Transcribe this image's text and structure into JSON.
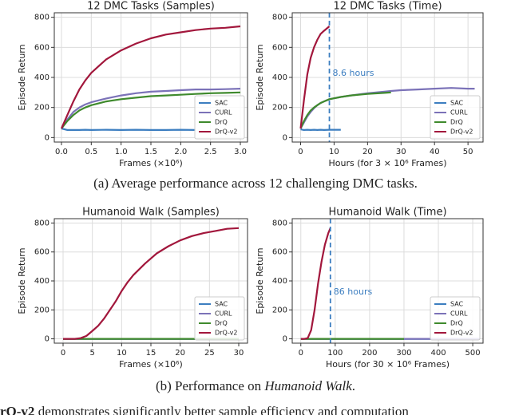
{
  "chart_data": [
    {
      "type": "line",
      "title": "12 DMC Tasks (Samples)",
      "x_label": "Frames (×10⁶)",
      "y_label": "Episode Return",
      "x": [
        0,
        0.1,
        0.2,
        0.3,
        0.4,
        0.5,
        0.75,
        1.0,
        1.25,
        1.5,
        1.75,
        2.0,
        2.25,
        2.5,
        2.75,
        3.0
      ],
      "series": [
        {
          "name": "SAC",
          "color": "#3c7ec0",
          "values": [
            60,
            50,
            50,
            50,
            52,
            50,
            52,
            50,
            52,
            50,
            50,
            52,
            50,
            null,
            null,
            null
          ]
        },
        {
          "name": "CURL",
          "color": "#7b72b8",
          "values": [
            60,
            120,
            170,
            200,
            220,
            235,
            260,
            280,
            295,
            305,
            310,
            315,
            320,
            320,
            322,
            325
          ]
        },
        {
          "name": "DrQ",
          "color": "#3f8a2d",
          "values": [
            60,
            110,
            150,
            180,
            200,
            215,
            240,
            255,
            265,
            275,
            280,
            285,
            290,
            295,
            297,
            300
          ]
        },
        {
          "name": "DrQ-v2",
          "color": "#a2173c",
          "values": [
            60,
            150,
            240,
            320,
            380,
            430,
            520,
            580,
            625,
            660,
            685,
            700,
            715,
            725,
            730,
            740
          ]
        }
      ],
      "xlim": [
        -0.12,
        3.12
      ],
      "ylim": [
        -30,
        830
      ],
      "xticks": [
        {
          "value": 0,
          "label": "0.0"
        },
        0.5,
        {
          "value": 1,
          "label": "1.0"
        },
        1.5,
        {
          "value": 2,
          "label": "2.0"
        },
        2.5,
        {
          "value": 3,
          "label": "3.0"
        }
      ],
      "yticks": [
        0,
        200,
        400,
        600,
        800
      ],
      "grid": true,
      "legend": "lower right"
    },
    {
      "type": "line",
      "title": "12 DMC Tasks (Time)",
      "x_label": "Hours (for 3 × 10⁶ Frames)",
      "y_label": "Episode Return",
      "x": [
        0,
        1,
        2,
        3,
        4,
        5,
        6,
        7,
        8.6,
        12,
        15,
        20,
        25,
        27,
        30,
        35,
        40,
        45,
        50,
        52
      ],
      "series": [
        {
          "name": "SAC",
          "color": "#3c7ec0",
          "values": [
            55,
            50,
            52,
            50,
            52,
            50,
            52,
            50,
            52,
            52,
            null,
            null,
            null,
            null,
            null,
            null,
            null,
            null,
            null,
            null
          ]
        },
        {
          "name": "CURL",
          "color": "#7b72b8",
          "values": [
            60,
            100,
            140,
            170,
            195,
            215,
            230,
            240,
            255,
            270,
            280,
            295,
            305,
            310,
            315,
            320,
            325,
            330,
            325,
            325
          ]
        },
        {
          "name": "DrQ",
          "color": "#3f8a2d",
          "values": [
            60,
            110,
            150,
            180,
            200,
            215,
            230,
            240,
            255,
            270,
            280,
            290,
            297,
            300,
            null,
            null,
            null,
            null,
            null,
            null
          ]
        },
        {
          "name": "DrQ-v2",
          "color": "#a2173c",
          "values": [
            60,
            250,
            420,
            530,
            600,
            650,
            690,
            710,
            740,
            null,
            null,
            null,
            null,
            null,
            null,
            null,
            null,
            null,
            null,
            null
          ]
        }
      ],
      "xlim": [
        -2.5,
        54.5
      ],
      "ylim": [
        -30,
        830
      ],
      "xticks": [
        0,
        10,
        20,
        30,
        40,
        50
      ],
      "yticks": [
        0,
        200,
        400,
        600,
        800
      ],
      "grid": true,
      "legend": "lower right",
      "vline": {
        "value": 8.6,
        "label": "8.6 hours",
        "color": "#3c7ec0"
      }
    },
    {
      "type": "line",
      "title": "Humanoid Walk (Samples)",
      "x_label": "Frames (×10⁶)",
      "y_label": "Episode Return",
      "x": [
        0,
        2,
        3,
        4,
        5,
        6,
        7,
        8,
        9,
        10,
        11,
        12,
        14,
        16,
        18,
        20,
        22,
        24,
        26,
        28,
        30
      ],
      "series": [
        {
          "name": "SAC",
          "color": "#3c7ec0",
          "values": [
            0,
            0,
            0,
            0,
            0,
            0,
            0,
            0,
            0,
            0,
            0,
            0,
            0,
            0,
            0,
            0,
            0,
            0,
            0,
            0,
            0
          ]
        },
        {
          "name": "CURL",
          "color": "#7b72b8",
          "values": [
            0,
            0,
            0,
            0,
            0,
            0,
            0,
            0,
            0,
            0,
            0,
            0,
            0,
            0,
            0,
            0,
            0,
            0,
            0,
            0,
            0
          ]
        },
        {
          "name": "DrQ",
          "color": "#3f8a2d",
          "values": [
            0,
            0,
            0,
            0,
            0,
            0,
            0,
            0,
            0,
            0,
            0,
            0,
            0,
            0,
            0,
            0,
            0,
            0,
            0,
            0,
            0
          ]
        },
        {
          "name": "DrQ-v2",
          "color": "#a2173c",
          "values": [
            0,
            0,
            5,
            20,
            55,
            90,
            140,
            200,
            260,
            330,
            390,
            440,
            520,
            590,
            640,
            680,
            710,
            730,
            745,
            760,
            765
          ]
        }
      ],
      "xlim": [
        -1.5,
        31.5
      ],
      "ylim": [
        -30,
        830
      ],
      "xticks": [
        0,
        5,
        10,
        15,
        20,
        25,
        30
      ],
      "yticks": [
        0,
        200,
        400,
        600,
        800
      ],
      "grid": true,
      "legend": "lower right"
    },
    {
      "type": "line",
      "title": "Humanoid Walk (Time)",
      "x_label": "Hours (for 30 × 10⁶ Frames)",
      "y_label": "Episode Return",
      "x": [
        0,
        10,
        20,
        30,
        40,
        50,
        60,
        70,
        80,
        86,
        100,
        200,
        300,
        400,
        500,
        520
      ],
      "series": [
        {
          "name": "SAC",
          "color": "#3c7ec0",
          "values": [
            0,
            0,
            0,
            0,
            0,
            0,
            0,
            0,
            0,
            0,
            0,
            0,
            0,
            0,
            0,
            0
          ]
        },
        {
          "name": "CURL",
          "color": "#7b72b8",
          "values": [
            0,
            0,
            0,
            0,
            0,
            0,
            0,
            0,
            0,
            0,
            0,
            0,
            0,
            0,
            0,
            0
          ]
        },
        {
          "name": "DrQ",
          "color": "#3f8a2d",
          "values": [
            0,
            0,
            0,
            0,
            0,
            0,
            0,
            0,
            0,
            0,
            0,
            0,
            0,
            null,
            null,
            null
          ]
        },
        {
          "name": "DrQ-v2",
          "color": "#a2173c",
          "values": [
            0,
            0,
            5,
            60,
            200,
            380,
            530,
            650,
            730,
            765,
            null,
            null,
            null,
            null,
            null,
            null
          ]
        }
      ],
      "xlim": [
        -25,
        530
      ],
      "ylim": [
        -30,
        830
      ],
      "xticks": [
        0,
        100,
        200,
        300,
        400,
        500
      ],
      "yticks": [
        0,
        200,
        400,
        600,
        800
      ],
      "grid": true,
      "legend": "lower right",
      "vline": {
        "value": 86,
        "label": "86 hours",
        "color": "#3c7ec0"
      }
    }
  ],
  "captions": [
    {
      "parts": [
        "(a) Average performance across 12 challenging DMC tasks."
      ],
      "italic": [
        false
      ]
    },
    {
      "parts": [
        "(b) Performance on ",
        "Humanoid Walk",
        "."
      ],
      "italic": [
        false,
        true,
        false
      ]
    }
  ],
  "footer": {
    "parts": [
      "rQ-v2",
      " demonstrates significantly better sample efficiency and computation"
    ],
    "bold": [
      true,
      false
    ]
  }
}
